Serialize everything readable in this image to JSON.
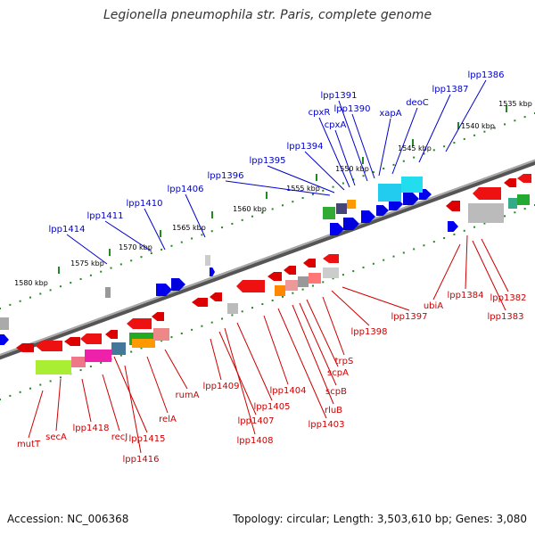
{
  "title": "Legionella pneumophila str. Paris, complete genome",
  "footer": {
    "accession": "Accession: NC_006368",
    "summary": "Topology: circular; Length: 3,503,610 bp; Genes: 3,080"
  },
  "colors": {
    "forward_label": "#0000cc",
    "reverse_label": "#cc0000",
    "backbone": "#777777",
    "tick": "#228822"
  },
  "scale_labels": [
    "1535 kbp",
    "1540 kbp",
    "1545 kbp",
    "1550 kbp",
    "1555 kbp",
    "1560 kbp",
    "1565 kbp",
    "1570 kbp",
    "1575 kbp",
    "1580 kbp"
  ],
  "forward_labels": [
    "lpp1386",
    "lpp1387",
    "deoC",
    "xapA",
    "lpp1390",
    "lpp1391",
    "cpxR",
    "cpxA",
    "lpp1394",
    "lpp1395",
    "lpp1396",
    "lpp1406",
    "lpp1410",
    "lpp1411",
    "lpp1414"
  ],
  "reverse_labels": [
    "mutT",
    "secA",
    "lpp1418",
    "recJ",
    "lpp1415",
    "lpp1416",
    "relA",
    "rumA",
    "lpp1409",
    "lpp1407",
    "lpp1408",
    "lpp1405",
    "lpp1404",
    "lpp1403",
    "rluB",
    "scpB",
    "scpA",
    "trpS",
    "lpp1398",
    "lpp1397",
    "ubiA",
    "lpp1384",
    "lpp1382",
    "lpp1383"
  ]
}
